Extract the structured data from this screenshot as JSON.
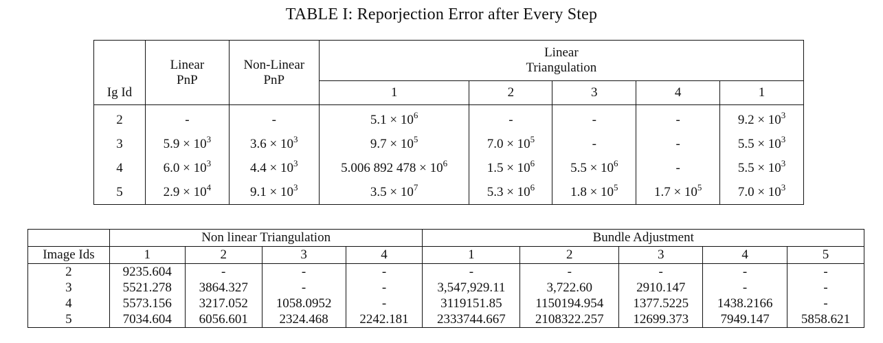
{
  "caption": "TABLE I: Reporjection Error after Every Step",
  "table1": {
    "headers": {
      "ig_id": "Ig Id",
      "linear_pnp": [
        "Linear",
        "PnP"
      ],
      "nonlinear_pnp": [
        "Non-Linear",
        "PnP"
      ],
      "linear_triangulation": [
        "Linear",
        "Triangulation"
      ],
      "sub": [
        "1",
        "2",
        "3",
        "4",
        "1"
      ]
    },
    "rows": [
      {
        "id": "2",
        "cells": [
          {
            "m": "-"
          },
          {
            "m": "-"
          },
          {
            "m": "5.1 × 10",
            "e": "6"
          },
          {
            "m": "-"
          },
          {
            "m": "-"
          },
          {
            "m": "-"
          },
          {
            "m": "9.2 × 10",
            "e": "3"
          }
        ]
      },
      {
        "id": "3",
        "cells": [
          {
            "m": "5.9 × 10",
            "e": "3"
          },
          {
            "m": "3.6 × 10",
            "e": "3"
          },
          {
            "m": "9.7 × 10",
            "e": "5"
          },
          {
            "m": "7.0 × 10",
            "e": "5"
          },
          {
            "m": "-"
          },
          {
            "m": "-"
          },
          {
            "m": "5.5 × 10",
            "e": "3"
          }
        ]
      },
      {
        "id": "4",
        "cells": [
          {
            "m": "6.0 × 10",
            "e": "3"
          },
          {
            "m": "4.4 × 10",
            "e": "3"
          },
          {
            "m": "5.006 892 478 × 10",
            "e": "6"
          },
          {
            "m": "1.5 × 10",
            "e": "6"
          },
          {
            "m": "5.5 × 10",
            "e": "6"
          },
          {
            "m": "-"
          },
          {
            "m": "5.5 × 10",
            "e": "3"
          }
        ]
      },
      {
        "id": "5",
        "cells": [
          {
            "m": "2.9 × 10",
            "e": "4"
          },
          {
            "m": "9.1 × 10",
            "e": "3"
          },
          {
            "m": "3.5 × 10",
            "e": "7"
          },
          {
            "m": "5.3 × 10",
            "e": "6"
          },
          {
            "m": "1.8 × 10",
            "e": "5"
          },
          {
            "m": "1.7 × 10",
            "e": "5"
          },
          {
            "m": "7.0 × 10",
            "e": "3"
          }
        ]
      }
    ]
  },
  "table2": {
    "group_headers": [
      "Non linear Triangulation",
      "Bundle Adjustment"
    ],
    "sub_headers": [
      "Image Ids",
      "1",
      "2",
      "3",
      "4",
      "1",
      "2",
      "3",
      "4",
      "5"
    ],
    "rows": [
      [
        "2",
        "9235.604",
        "-",
        "-",
        "-",
        "-",
        "-",
        "-",
        "-",
        "-"
      ],
      [
        "3",
        "5521.278",
        "3864.327",
        "-",
        "-",
        "3,547,929.11",
        "3,722.60",
        "2910.147",
        "-",
        "-"
      ],
      [
        "4",
        "5573.156",
        "3217.052",
        "1058.0952",
        "-",
        "3119151.85",
        "1150194.954",
        "1377.5225",
        "1438.2166",
        "-"
      ],
      [
        "5",
        "7034.604",
        "6056.601",
        "2324.468",
        "2242.181",
        "2333744.667",
        "2108322.257",
        "12699.373",
        "7949.147",
        "5858.621"
      ]
    ]
  }
}
